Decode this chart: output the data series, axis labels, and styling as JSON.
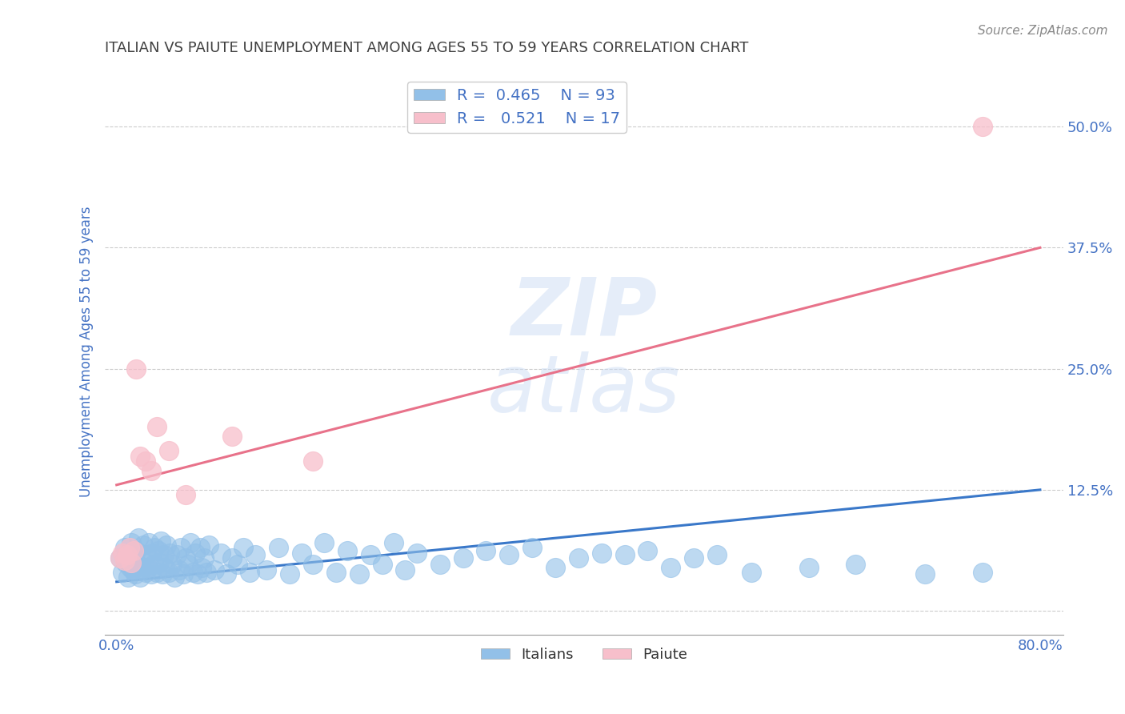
{
  "title": "ITALIAN VS PAIUTE UNEMPLOYMENT AMONG AGES 55 TO 59 YEARS CORRELATION CHART",
  "source": "Source: ZipAtlas.com",
  "ylabel": "Unemployment Among Ages 55 to 59 years",
  "xlim": [
    -0.01,
    0.82
  ],
  "ylim": [
    -0.025,
    0.56
  ],
  "xtick_positions": [
    0.0,
    0.8
  ],
  "xticklabels": [
    "0.0%",
    "80.0%"
  ],
  "yticks": [
    0.0,
    0.125,
    0.25,
    0.375,
    0.5
  ],
  "yticklabels": [
    "",
    "12.5%",
    "25.0%",
    "37.5%",
    "50.0%"
  ],
  "legend_r1": "R =  0.465",
  "legend_n1": "N = 93",
  "legend_r2": "R =   0.521",
  "legend_n2": "N = 17",
  "blue_color": "#92c0e8",
  "pink_color": "#f7bfcb",
  "blue_line_color": "#3a78c9",
  "pink_line_color": "#e8728a",
  "title_color": "#404040",
  "tick_color": "#4472c4",
  "grid_color": "#cccccc",
  "italian_x": [
    0.003,
    0.005,
    0.007,
    0.008,
    0.01,
    0.011,
    0.012,
    0.013,
    0.014,
    0.015,
    0.016,
    0.017,
    0.018,
    0.019,
    0.02,
    0.021,
    0.022,
    0.023,
    0.025,
    0.026,
    0.027,
    0.028,
    0.03,
    0.031,
    0.032,
    0.033,
    0.035,
    0.036,
    0.037,
    0.038,
    0.04,
    0.041,
    0.042,
    0.043,
    0.045,
    0.046,
    0.048,
    0.05,
    0.052,
    0.054,
    0.056,
    0.058,
    0.06,
    0.062,
    0.064,
    0.066,
    0.068,
    0.07,
    0.072,
    0.074,
    0.076,
    0.078,
    0.08,
    0.085,
    0.09,
    0.095,
    0.1,
    0.105,
    0.11,
    0.115,
    0.12,
    0.13,
    0.14,
    0.15,
    0.16,
    0.17,
    0.18,
    0.19,
    0.2,
    0.21,
    0.22,
    0.23,
    0.24,
    0.25,
    0.26,
    0.28,
    0.3,
    0.32,
    0.34,
    0.36,
    0.38,
    0.4,
    0.42,
    0.44,
    0.46,
    0.48,
    0.5,
    0.52,
    0.55,
    0.6,
    0.64,
    0.7,
    0.75
  ],
  "italian_y": [
    0.055,
    0.04,
    0.065,
    0.05,
    0.035,
    0.06,
    0.045,
    0.07,
    0.042,
    0.058,
    0.038,
    0.062,
    0.048,
    0.075,
    0.035,
    0.055,
    0.042,
    0.068,
    0.04,
    0.058,
    0.045,
    0.07,
    0.038,
    0.06,
    0.048,
    0.065,
    0.04,
    0.062,
    0.05,
    0.072,
    0.038,
    0.058,
    0.045,
    0.068,
    0.04,
    0.06,
    0.048,
    0.035,
    0.058,
    0.042,
    0.065,
    0.038,
    0.055,
    0.048,
    0.07,
    0.04,
    0.06,
    0.038,
    0.065,
    0.045,
    0.055,
    0.04,
    0.068,
    0.042,
    0.06,
    0.038,
    0.055,
    0.048,
    0.065,
    0.04,
    0.058,
    0.042,
    0.065,
    0.038,
    0.06,
    0.048,
    0.07,
    0.04,
    0.062,
    0.038,
    0.058,
    0.048,
    0.07,
    0.042,
    0.06,
    0.048,
    0.055,
    0.062,
    0.058,
    0.065,
    0.045,
    0.055,
    0.06,
    0.058,
    0.062,
    0.045,
    0.055,
    0.058,
    0.04,
    0.045,
    0.048,
    0.038,
    0.04
  ],
  "paiute_x": [
    0.003,
    0.005,
    0.007,
    0.009,
    0.011,
    0.013,
    0.015,
    0.017,
    0.02,
    0.025,
    0.03,
    0.035,
    0.045,
    0.06,
    0.1,
    0.17,
    0.75
  ],
  "paiute_y": [
    0.055,
    0.06,
    0.052,
    0.058,
    0.065,
    0.05,
    0.062,
    0.25,
    0.16,
    0.155,
    0.145,
    0.19,
    0.165,
    0.12,
    0.18,
    0.155,
    0.5
  ],
  "blue_trend_x": [
    0.0,
    0.8
  ],
  "blue_trend_y_start": 0.03,
  "blue_trend_y_end": 0.125,
  "pink_trend_x": [
    0.0,
    0.8
  ],
  "pink_trend_y_start": 0.13,
  "pink_trend_y_end": 0.375,
  "watermark_line1": "ZIP",
  "watermark_line2": "atlas"
}
